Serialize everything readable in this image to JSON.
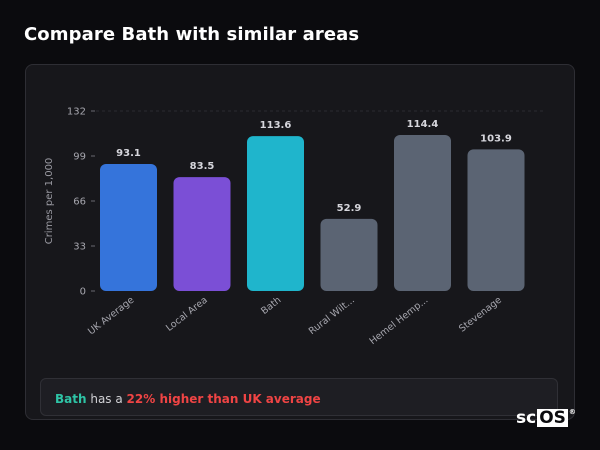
{
  "page": {
    "title": "Compare Bath with similar areas"
  },
  "chart_data": {
    "type": "bar",
    "title": "",
    "xlabel": "",
    "ylabel": "Crimes per 1,000",
    "ylim": [
      0,
      132
    ],
    "yticks": [
      0,
      33,
      66,
      99,
      132
    ],
    "grid": false,
    "categories": [
      "UK Average",
      "Local Area",
      "Bath",
      "Rural Wilt...",
      "Hemel Hemp...",
      "Stevenage"
    ],
    "values": [
      93.1,
      83.5,
      113.6,
      52.9,
      114.4,
      103.9
    ],
    "value_labels": [
      "93.1",
      "83.5",
      "113.6",
      "52.9",
      "114.4",
      "103.9"
    ],
    "colors": [
      "#3574db",
      "#7b4fd6",
      "#1fb5cc",
      "#5b6473",
      "#5b6473",
      "#5b6473"
    ]
  },
  "summary": {
    "place": "Bath",
    "text_middle": " has a ",
    "difference": "22% higher than UK average"
  },
  "brand": {
    "text": "sc",
    "boxed": "OS",
    "mark": "®"
  }
}
